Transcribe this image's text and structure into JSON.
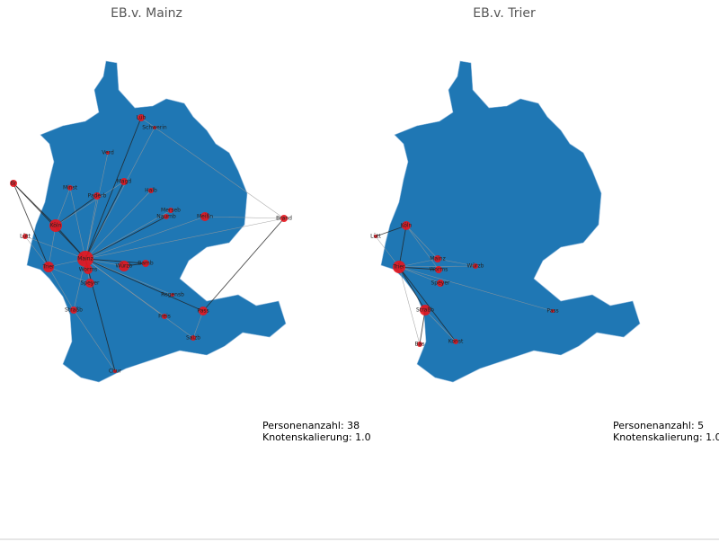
{
  "panels": [
    {
      "title": "EB.v. Mainz",
      "nodes": [
        {
          "label": "Lüb"
        },
        {
          "label": "Schwerin"
        },
        {
          "label": "Verd"
        },
        {
          "label": "Br"
        },
        {
          "label": "Minst"
        },
        {
          "label": "Paderb"
        },
        {
          "label": "Magd"
        },
        {
          "label": "Halb"
        },
        {
          "label": "Merseb"
        },
        {
          "label": "Naumb"
        },
        {
          "label": "Meißn"
        },
        {
          "label": "Brand"
        },
        {
          "label": "Köln"
        },
        {
          "label": "Lütt"
        },
        {
          "label": "Trier"
        },
        {
          "label": "Mainz"
        },
        {
          "label": "Worms"
        },
        {
          "label": "Speyer"
        },
        {
          "label": "Würzb"
        },
        {
          "label": "Bamb"
        },
        {
          "label": "Regensb"
        },
        {
          "label": "Straßb"
        },
        {
          "label": "Pass"
        },
        {
          "label": "Freis"
        },
        {
          "label": "Salzb"
        },
        {
          "label": "Chur"
        }
      ],
      "stats": [
        "Personenanzahl: 38",
        "Knotenskalierung: 1.0"
      ]
    },
    {
      "title": "EB.v. Trier",
      "nodes": [
        {
          "label": "Köln"
        },
        {
          "label": "Lütt"
        },
        {
          "label": "Trier"
        },
        {
          "label": "Mainz"
        },
        {
          "label": "Worms"
        },
        {
          "label": "Speyer"
        },
        {
          "label": "Würzb"
        },
        {
          "label": "Straßb"
        },
        {
          "label": "Pass"
        },
        {
          "label": "Bas"
        },
        {
          "label": "Konst"
        }
      ],
      "stats": [
        "Personenanzahl: 5",
        "Knotenskalierung: 1.0"
      ]
    }
  ]
}
